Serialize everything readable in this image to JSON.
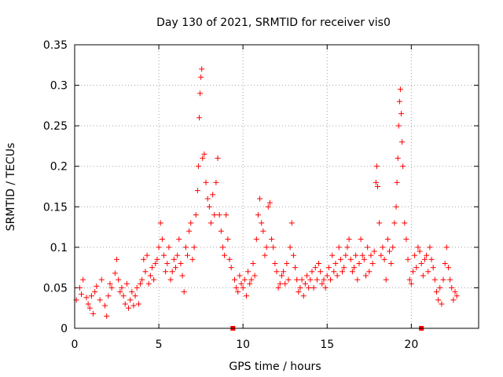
{
  "chart_data": {
    "type": "scatter",
    "title": "Day 130 of 2021, SRMTID for receiver vis0",
    "xlabel": "GPS time / hours",
    "ylabel": "SRMTID / TECUs",
    "xlim": [
      0,
      24
    ],
    "ylim": [
      0,
      0.35
    ],
    "xticks": [
      0,
      5,
      10,
      15,
      20
    ],
    "xtick_labels": [
      "0",
      "5",
      "10",
      "15",
      "20"
    ],
    "yticks": [
      0,
      0.05,
      0.1,
      0.15,
      0.2,
      0.25,
      0.3,
      0.35
    ],
    "ytick_labels": [
      "0",
      "0.05",
      "0.1",
      "0.15",
      "0.2",
      "0.25",
      "0.3",
      "0.35"
    ],
    "grid": true,
    "marker": "+",
    "series": [
      {
        "name": "SRMTID",
        "color": "#ff0000",
        "points": [
          [
            0.1,
            0.035
          ],
          [
            0.3,
            0.05
          ],
          [
            0.4,
            0.042
          ],
          [
            0.5,
            0.06
          ],
          [
            0.7,
            0.038
          ],
          [
            0.8,
            0.03
          ],
          [
            0.9,
            0.025
          ],
          [
            1.0,
            0.04
          ],
          [
            1.1,
            0.018
          ],
          [
            1.2,
            0.045
          ],
          [
            1.3,
            0.052
          ],
          [
            1.5,
            0.035
          ],
          [
            1.6,
            0.06
          ],
          [
            1.8,
            0.028
          ],
          [
            1.9,
            0.015
          ],
          [
            2.0,
            0.04
          ],
          [
            2.1,
            0.055
          ],
          [
            2.2,
            0.05
          ],
          [
            2.4,
            0.068
          ],
          [
            2.5,
            0.085
          ],
          [
            2.6,
            0.06
          ],
          [
            2.7,
            0.045
          ],
          [
            2.8,
            0.05
          ],
          [
            2.9,
            0.04
          ],
          [
            3.0,
            0.03
          ],
          [
            3.1,
            0.055
          ],
          [
            3.2,
            0.025
          ],
          [
            3.3,
            0.035
          ],
          [
            3.4,
            0.045
          ],
          [
            3.5,
            0.028
          ],
          [
            3.6,
            0.04
          ],
          [
            3.7,
            0.05
          ],
          [
            3.8,
            0.03
          ],
          [
            3.9,
            0.055
          ],
          [
            4.0,
            0.06
          ],
          [
            4.1,
            0.085
          ],
          [
            4.2,
            0.07
          ],
          [
            4.3,
            0.09
          ],
          [
            4.4,
            0.055
          ],
          [
            4.5,
            0.065
          ],
          [
            4.6,
            0.075
          ],
          [
            4.7,
            0.06
          ],
          [
            4.8,
            0.08
          ],
          [
            4.9,
            0.085
          ],
          [
            5.0,
            0.1
          ],
          [
            5.1,
            0.13
          ],
          [
            5.2,
            0.11
          ],
          [
            5.3,
            0.09
          ],
          [
            5.4,
            0.07
          ],
          [
            5.5,
            0.08
          ],
          [
            5.6,
            0.1
          ],
          [
            5.7,
            0.06
          ],
          [
            5.8,
            0.07
          ],
          [
            5.9,
            0.085
          ],
          [
            6.0,
            0.075
          ],
          [
            6.1,
            0.09
          ],
          [
            6.2,
            0.11
          ],
          [
            6.3,
            0.08
          ],
          [
            6.4,
            0.065
          ],
          [
            6.5,
            0.045
          ],
          [
            6.6,
            0.1
          ],
          [
            6.7,
            0.09
          ],
          [
            6.8,
            0.12
          ],
          [
            6.9,
            0.13
          ],
          [
            7.0,
            0.085
          ],
          [
            7.1,
            0.1
          ],
          [
            7.2,
            0.14
          ],
          [
            7.3,
            0.17
          ],
          [
            7.35,
            0.2
          ],
          [
            7.4,
            0.26
          ],
          [
            7.45,
            0.29
          ],
          [
            7.5,
            0.31
          ],
          [
            7.55,
            0.32
          ],
          [
            7.6,
            0.21
          ],
          [
            7.7,
            0.215
          ],
          [
            7.8,
            0.18
          ],
          [
            7.9,
            0.16
          ],
          [
            8.0,
            0.15
          ],
          [
            8.1,
            0.13
          ],
          [
            8.2,
            0.165
          ],
          [
            8.3,
            0.14
          ],
          [
            8.4,
            0.18
          ],
          [
            8.5,
            0.21
          ],
          [
            8.6,
            0.14
          ],
          [
            8.7,
            0.12
          ],
          [
            8.8,
            0.1
          ],
          [
            8.9,
            0.09
          ],
          [
            9.0,
            0.14
          ],
          [
            9.1,
            0.11
          ],
          [
            9.2,
            0.085
          ],
          [
            9.3,
            0.075
          ],
          [
            9.5,
            0.06
          ],
          [
            9.6,
            0.05
          ],
          [
            9.7,
            0.045
          ],
          [
            9.8,
            0.065
          ],
          [
            9.9,
            0.055
          ],
          [
            10.0,
            0.05
          ],
          [
            10.1,
            0.06
          ],
          [
            10.2,
            0.04
          ],
          [
            10.3,
            0.07
          ],
          [
            10.4,
            0.055
          ],
          [
            10.5,
            0.06
          ],
          [
            10.6,
            0.08
          ],
          [
            10.7,
            0.065
          ],
          [
            10.8,
            0.11
          ],
          [
            10.9,
            0.14
          ],
          [
            11.0,
            0.16
          ],
          [
            11.1,
            0.13
          ],
          [
            11.2,
            0.12
          ],
          [
            11.3,
            0.09
          ],
          [
            11.4,
            0.1
          ],
          [
            11.5,
            0.15
          ],
          [
            11.6,
            0.155
          ],
          [
            11.7,
            0.11
          ],
          [
            11.8,
            0.1
          ],
          [
            11.9,
            0.08
          ],
          [
            12.0,
            0.07
          ],
          [
            12.1,
            0.05
          ],
          [
            12.2,
            0.055
          ],
          [
            12.3,
            0.065
          ],
          [
            12.4,
            0.07
          ],
          [
            12.5,
            0.055
          ],
          [
            12.6,
            0.08
          ],
          [
            12.7,
            0.06
          ],
          [
            12.8,
            0.1
          ],
          [
            12.9,
            0.13
          ],
          [
            13.0,
            0.09
          ],
          [
            13.1,
            0.075
          ],
          [
            13.2,
            0.06
          ],
          [
            13.3,
            0.045
          ],
          [
            13.4,
            0.05
          ],
          [
            13.5,
            0.06
          ],
          [
            13.6,
            0.04
          ],
          [
            13.7,
            0.055
          ],
          [
            13.8,
            0.065
          ],
          [
            13.9,
            0.05
          ],
          [
            14.0,
            0.06
          ],
          [
            14.1,
            0.07
          ],
          [
            14.2,
            0.05
          ],
          [
            14.3,
            0.075
          ],
          [
            14.4,
            0.06
          ],
          [
            14.5,
            0.08
          ],
          [
            14.6,
            0.07
          ],
          [
            14.7,
            0.055
          ],
          [
            14.8,
            0.06
          ],
          [
            14.9,
            0.05
          ],
          [
            15.0,
            0.065
          ],
          [
            15.1,
            0.075
          ],
          [
            15.2,
            0.06
          ],
          [
            15.3,
            0.09
          ],
          [
            15.4,
            0.07
          ],
          [
            15.5,
            0.08
          ],
          [
            15.6,
            0.065
          ],
          [
            15.7,
            0.1
          ],
          [
            15.8,
            0.085
          ],
          [
            15.9,
            0.07
          ],
          [
            16.0,
            0.075
          ],
          [
            16.1,
            0.09
          ],
          [
            16.2,
            0.1
          ],
          [
            16.3,
            0.11
          ],
          [
            16.4,
            0.085
          ],
          [
            16.5,
            0.07
          ],
          [
            16.6,
            0.075
          ],
          [
            16.7,
            0.09
          ],
          [
            16.8,
            0.06
          ],
          [
            16.9,
            0.08
          ],
          [
            17.0,
            0.11
          ],
          [
            17.1,
            0.09
          ],
          [
            17.2,
            0.085
          ],
          [
            17.3,
            0.065
          ],
          [
            17.4,
            0.1
          ],
          [
            17.5,
            0.07
          ],
          [
            17.6,
            0.09
          ],
          [
            17.7,
            0.08
          ],
          [
            17.8,
            0.095
          ],
          [
            17.9,
            0.18
          ],
          [
            17.95,
            0.2
          ],
          [
            18.0,
            0.175
          ],
          [
            18.1,
            0.13
          ],
          [
            18.2,
            0.09
          ],
          [
            18.3,
            0.1
          ],
          [
            18.4,
            0.085
          ],
          [
            18.5,
            0.06
          ],
          [
            18.6,
            0.11
          ],
          [
            18.7,
            0.095
          ],
          [
            18.8,
            0.08
          ],
          [
            18.9,
            0.1
          ],
          [
            19.0,
            0.13
          ],
          [
            19.1,
            0.15
          ],
          [
            19.15,
            0.18
          ],
          [
            19.2,
            0.21
          ],
          [
            19.25,
            0.25
          ],
          [
            19.3,
            0.28
          ],
          [
            19.35,
            0.295
          ],
          [
            19.4,
            0.265
          ],
          [
            19.45,
            0.23
          ],
          [
            19.5,
            0.2
          ],
          [
            19.6,
            0.13
          ],
          [
            19.7,
            0.11
          ],
          [
            19.8,
            0.085
          ],
          [
            19.9,
            0.06
          ],
          [
            20.0,
            0.055
          ],
          [
            20.1,
            0.07
          ],
          [
            20.2,
            0.09
          ],
          [
            20.3,
            0.075
          ],
          [
            20.4,
            0.1
          ],
          [
            20.5,
            0.095
          ],
          [
            20.6,
            0.08
          ],
          [
            20.7,
            0.065
          ],
          [
            20.8,
            0.085
          ],
          [
            20.9,
            0.09
          ],
          [
            21.0,
            0.07
          ],
          [
            21.1,
            0.1
          ],
          [
            21.2,
            0.085
          ],
          [
            21.3,
            0.075
          ],
          [
            21.4,
            0.06
          ],
          [
            21.5,
            0.045
          ],
          [
            21.6,
            0.035
          ],
          [
            21.7,
            0.05
          ],
          [
            21.8,
            0.03
          ],
          [
            21.9,
            0.06
          ],
          [
            22.0,
            0.08
          ],
          [
            22.1,
            0.1
          ],
          [
            22.2,
            0.075
          ],
          [
            22.3,
            0.06
          ],
          [
            22.4,
            0.05
          ],
          [
            22.5,
            0.035
          ],
          [
            22.6,
            0.045
          ],
          [
            22.7,
            0.04
          ]
        ]
      }
    ],
    "bottom_markers": [
      9.4,
      20.6
    ]
  }
}
